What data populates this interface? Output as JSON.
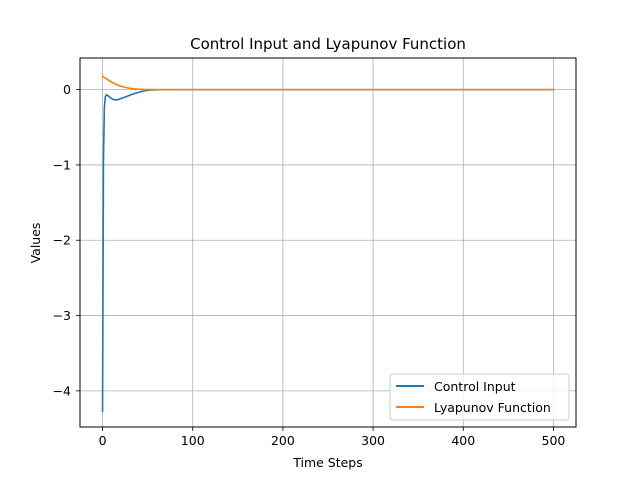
{
  "chart_data": {
    "type": "line",
    "title": "Control Input and Lyapunov Function",
    "xlabel": "Time Steps",
    "ylabel": "Values",
    "xlim": [
      -25,
      525
    ],
    "ylim": [
      -4.48,
      0.42
    ],
    "xticks": [
      0,
      100,
      200,
      300,
      400,
      500
    ],
    "yticks": [
      0,
      -1,
      -2,
      -3,
      -4
    ],
    "xtick_labels": [
      "0",
      "100",
      "200",
      "300",
      "400",
      "500"
    ],
    "ytick_labels": [
      "0",
      "−1",
      "−2",
      "−3",
      "−4"
    ],
    "grid": true,
    "legend_position": "lower-right",
    "series": [
      {
        "name": "Control Input",
        "color": "#1f77b4",
        "x": [
          0,
          1,
          2,
          3,
          4,
          6,
          8,
          10,
          12,
          14,
          16,
          18,
          20,
          25,
          30,
          35,
          40,
          45,
          50,
          55,
          60,
          70,
          80,
          100,
          150,
          200,
          300,
          400,
          500
        ],
        "y": [
          -4.27,
          -0.95,
          -0.25,
          -0.1,
          -0.07,
          -0.08,
          -0.1,
          -0.12,
          -0.13,
          -0.135,
          -0.135,
          -0.13,
          -0.12,
          -0.1,
          -0.075,
          -0.055,
          -0.035,
          -0.02,
          -0.01,
          -0.005,
          -0.002,
          0.0,
          0.0,
          0.0,
          0.0,
          0.0,
          0.0,
          0.0,
          0.0
        ]
      },
      {
        "name": "Lyapunov Function",
        "color": "#ff7f0e",
        "x": [
          0,
          2,
          4,
          6,
          8,
          10,
          12,
          15,
          18,
          20,
          25,
          30,
          35,
          40,
          45,
          50,
          55,
          60,
          70,
          80,
          100,
          150,
          200,
          300,
          400,
          500
        ],
        "y": [
          0.18,
          0.16,
          0.145,
          0.13,
          0.115,
          0.1,
          0.088,
          0.07,
          0.055,
          0.046,
          0.03,
          0.018,
          0.011,
          0.006,
          0.003,
          0.0015,
          0.0008,
          0.0004,
          0.0001,
          0.0,
          0.0,
          0.0,
          0.0,
          0.0,
          0.0,
          0.0
        ]
      }
    ]
  }
}
